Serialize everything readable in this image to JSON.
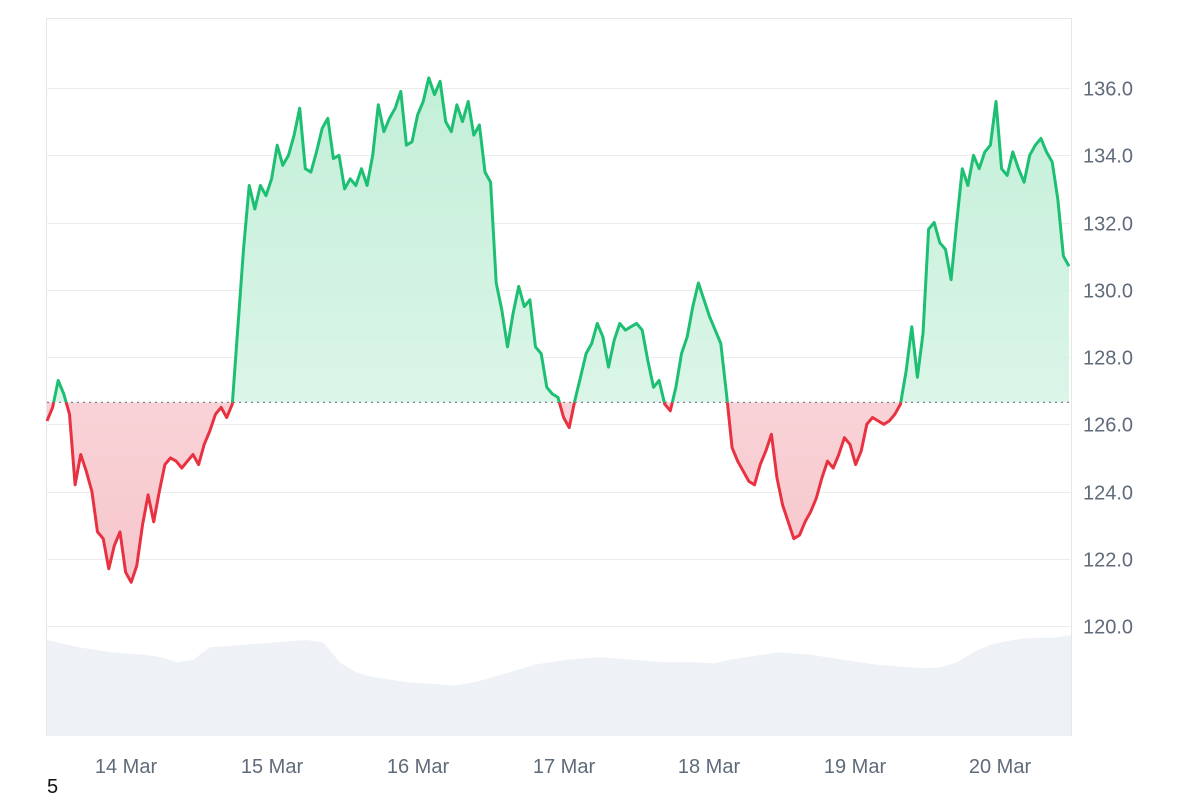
{
  "chart_data": {
    "type": "area",
    "x_labels": [
      "14 Mar",
      "15 Mar",
      "16 Mar",
      "17 Mar",
      "18 Mar",
      "19 Mar",
      "20 Mar"
    ],
    "ylim": [
      118.0,
      138.0
    ],
    "yticks": [
      120.0,
      122.0,
      124.0,
      126.0,
      128.0,
      130.0,
      132.0,
      134.0,
      136.0
    ],
    "baseline": 126.65,
    "series": [
      {
        "values": [
          126.1,
          126.5,
          127.3,
          126.9,
          126.3,
          124.2,
          125.1,
          124.6,
          124.0,
          122.8,
          122.6,
          121.7,
          122.4,
          122.8,
          121.6,
          121.3,
          121.8,
          123.0,
          123.9,
          123.1,
          124.0,
          124.8,
          125.0,
          124.9,
          124.7,
          124.9,
          125.1,
          124.8,
          125.4,
          125.8,
          126.3,
          126.5,
          126.2,
          126.6,
          128.9,
          131.2,
          133.1,
          132.4,
          133.1,
          132.8,
          133.3,
          134.3,
          133.7,
          134.0,
          134.6,
          135.4,
          133.6,
          133.5,
          134.1,
          134.8,
          135.1,
          133.9,
          134.0,
          133.0,
          133.3,
          133.1,
          133.6,
          133.1,
          134.0,
          135.5,
          134.7,
          135.1,
          135.4,
          135.9,
          134.3,
          134.4,
          135.2,
          135.6,
          136.3,
          135.8,
          136.2,
          135.0,
          134.7,
          135.5,
          135.0,
          135.6,
          134.6,
          134.9,
          133.5,
          133.2,
          130.2,
          129.4,
          128.3,
          129.3,
          130.1,
          129.5,
          129.7,
          128.3,
          128.1,
          127.1,
          126.9,
          126.8,
          126.2,
          125.9,
          126.7,
          127.4,
          128.1,
          128.4,
          129.0,
          128.6,
          127.7,
          128.5,
          129.0,
          128.8,
          128.9,
          129.0,
          128.8,
          127.9,
          127.1,
          127.3,
          126.6,
          126.4,
          127.1,
          128.1,
          128.6,
          129.5,
          130.2,
          129.7,
          129.2,
          128.8,
          128.4,
          126.9,
          125.3,
          124.9,
          124.6,
          124.3,
          124.2,
          124.8,
          125.2,
          125.7,
          124.4,
          123.6,
          123.1,
          122.6,
          122.7,
          123.1,
          123.4,
          123.8,
          124.4,
          124.9,
          124.7,
          125.1,
          125.6,
          125.4,
          124.8,
          125.2,
          126.0,
          126.2,
          126.1,
          126.0,
          126.1,
          126.3,
          126.6,
          127.6,
          128.9,
          127.4,
          128.7,
          131.8,
          132.0,
          131.4,
          131.2,
          130.3,
          132.0,
          133.6,
          133.1,
          134.0,
          133.6,
          134.1,
          134.3,
          135.6,
          133.6,
          133.4,
          134.1,
          133.6,
          133.2,
          134.0,
          134.3,
          134.5,
          134.1,
          133.8,
          132.7,
          131.0,
          130.7
        ]
      }
    ],
    "colors": {
      "up": "#1dbf73",
      "down": "#e83241",
      "up_fill": "#c9f0dc",
      "down_fill": "#f9d2d6",
      "grid": "#ececec",
      "volume": "#eef1f5",
      "baseline": "#7a8290"
    },
    "volume": [
      0.78,
      0.75,
      0.72,
      0.7,
      0.68,
      0.67,
      0.66,
      0.64,
      0.6,
      0.62,
      0.72,
      0.73,
      0.74,
      0.75,
      0.76,
      0.77,
      0.78,
      0.76,
      0.6,
      0.52,
      0.48,
      0.46,
      0.44,
      0.43,
      0.42,
      0.41,
      0.43,
      0.46,
      0.5,
      0.54,
      0.58,
      0.6,
      0.62,
      0.63,
      0.64,
      0.63,
      0.62,
      0.61,
      0.6,
      0.6,
      0.6,
      0.59,
      0.62,
      0.64,
      0.66,
      0.68,
      0.67,
      0.66,
      0.64,
      0.62,
      0.6,
      0.58,
      0.57,
      0.56,
      0.55,
      0.56,
      0.6,
      0.68,
      0.74,
      0.77,
      0.79,
      0.8,
      0.8,
      0.82
    ],
    "corner_label": "5"
  }
}
